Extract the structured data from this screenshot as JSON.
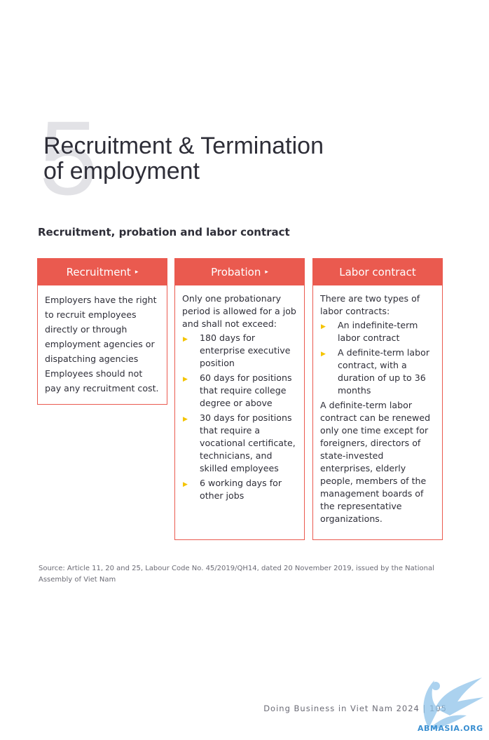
{
  "chapter": {
    "number": "5",
    "title_line1": "Recruitment & Termination",
    "title_line2": "of employment"
  },
  "section": {
    "subtitle": "Recruitment, probation and labor contract"
  },
  "boxes": {
    "recruitment": {
      "header": "Recruitment",
      "arrow": "▸",
      "text": "Employers have the right to recruit employees directly or through employment agencies or dispatching agencies Employees should not pay any recruitment cost."
    },
    "probation": {
      "header": "Probation",
      "arrow": "▸",
      "intro": "Only one probationary period is allowed for a job and shall not exceed:",
      "items": [
        "180 days for enterprise executive position",
        "60 days for positions that require college degree or above",
        "30 days for positions that require a vocational certificate, technicians, and skilled employees",
        "6 working days for other jobs"
      ]
    },
    "labor_contract": {
      "header": "Labor contract",
      "intro": "There are two types of labor contracts:",
      "items": [
        "An indefinite-term labor contract",
        "A definite-term labor contract, with a duration of up to 36 months"
      ],
      "outro": "A definite-term labor contract can be renewed only one time except for foreigners, directors of state-invested enterprises, elderly people, members of the management boards of the representative organizations."
    }
  },
  "bullet_glyph": "▶",
  "source": "Source: Article 11, 20 and 25, Labour Code No. 45/2019/QH14, dated 20 November 2019, issued by the National Assembly of Viet Nam",
  "footer": {
    "text": "Doing Business in Viet Nam 2024 | 105"
  },
  "watermark": {
    "text": "ABMASIA.ORG",
    "icon": "eagle-icon"
  },
  "colors": {
    "accent": "#ea5a4f",
    "bullet": "#f5c400",
    "chapter_number": "#e2e2e6"
  }
}
